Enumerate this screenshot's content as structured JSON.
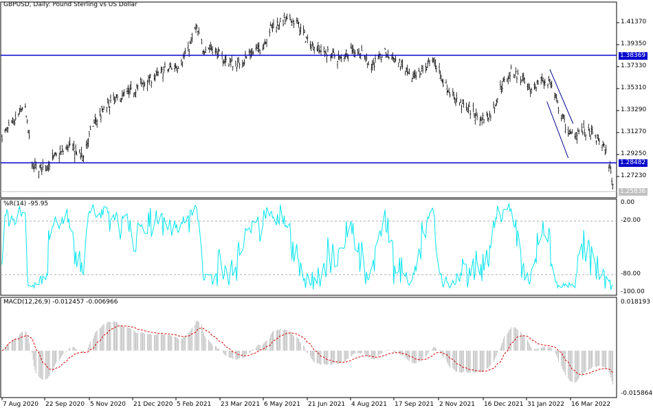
{
  "chart": {
    "title": "GBPUSD, Daily:  Pound Sterling vs US Dollar",
    "wpr_label": "%R(14) -95.95",
    "macd_label": "MACD(12,26,9) -0.012457 -0.006966"
  },
  "colors": {
    "bars": "#000000",
    "hline": "#0000cc",
    "wpr": "#00e5ee",
    "macd_hist": "#c0c0c0",
    "macd_signal": "#dd0000",
    "current_price": "#c0c0c0"
  },
  "chart_data": {
    "type": "ohlc",
    "price_axis": {
      "ticks": [
        "1.41370",
        "1.39350",
        "1.37330",
        "1.35310",
        "1.33290",
        "1.31270",
        "1.29250",
        "1.27230"
      ],
      "range": [
        1.2565,
        1.432
      ]
    },
    "price_tags": [
      {
        "value": "1.38369",
        "kind": "hline"
      },
      {
        "value": "1.28482",
        "kind": "hline"
      },
      {
        "value": "1.25836",
        "kind": "current"
      }
    ],
    "trendlines": [
      [
        [
          "2022-02-23",
          1.3708
        ],
        [
          "2022-03-19",
          1.3209
        ]
      ],
      [
        [
          "2022-02-20",
          1.3411
        ],
        [
          "2022-03-14",
          1.2893
        ]
      ]
    ],
    "x_ticks": [
      "7 Aug 2020",
      "22 Sep 2020",
      "5 Nov 2020",
      "21 Dec 2020",
      "5 Feb 2021",
      "23 Mar 2021",
      "6 May 2021",
      "21 Jun 2021",
      "4 Aug 2021",
      "17 Sep 2021",
      "2 Nov 2021",
      "16 Dec 2021",
      "31 Jan 2022",
      "16 Mar 2022"
    ],
    "closes": [
      [
        "2020-08-07",
        1.31
      ],
      [
        "2020-08-19",
        1.32
      ],
      [
        "2020-08-30",
        1.34
      ],
      [
        "2020-09-08",
        1.28
      ],
      [
        "2020-09-20",
        1.28
      ],
      [
        "2020-10-01",
        1.29
      ],
      [
        "2020-10-15",
        1.3
      ],
      [
        "2020-10-29",
        1.29
      ],
      [
        "2020-11-09",
        1.32
      ],
      [
        "2020-11-26",
        1.34
      ],
      [
        "2020-12-18",
        1.35
      ],
      [
        "2021-01-04",
        1.36
      ],
      [
        "2021-01-22",
        1.37
      ],
      [
        "2021-02-05",
        1.375
      ],
      [
        "2021-02-16",
        1.39
      ],
      [
        "2021-02-23",
        1.41
      ],
      [
        "2021-03-02",
        1.39
      ],
      [
        "2021-03-13",
        1.39
      ],
      [
        "2021-03-23",
        1.38
      ],
      [
        "2021-04-06",
        1.375
      ],
      [
        "2021-04-21",
        1.385
      ],
      [
        "2021-05-01",
        1.39
      ],
      [
        "2021-05-12",
        1.41
      ],
      [
        "2021-05-23",
        1.415
      ],
      [
        "2021-06-06",
        1.415
      ],
      [
        "2021-06-16",
        1.4
      ],
      [
        "2021-06-27",
        1.39
      ],
      [
        "2021-07-11",
        1.385
      ],
      [
        "2021-07-22",
        1.38
      ],
      [
        "2021-08-01",
        1.39
      ],
      [
        "2021-08-12",
        1.385
      ],
      [
        "2021-08-23",
        1.375
      ],
      [
        "2021-09-06",
        1.385
      ],
      [
        "2021-09-17",
        1.38
      ],
      [
        "2021-09-27",
        1.37
      ],
      [
        "2021-10-04",
        1.36
      ],
      [
        "2021-10-15",
        1.37
      ],
      [
        "2021-10-26",
        1.38
      ],
      [
        "2021-11-05",
        1.36
      ],
      [
        "2021-11-16",
        1.345
      ],
      [
        "2021-11-30",
        1.335
      ],
      [
        "2021-12-14",
        1.325
      ],
      [
        "2021-12-25",
        1.33
      ],
      [
        "2022-01-04",
        1.355
      ],
      [
        "2022-01-15",
        1.37
      ],
      [
        "2022-01-26",
        1.36
      ],
      [
        "2022-02-02",
        1.35
      ],
      [
        "2022-02-12",
        1.36
      ],
      [
        "2022-02-23",
        1.36
      ],
      [
        "2022-03-06",
        1.33
      ],
      [
        "2022-03-16",
        1.31
      ],
      [
        "2022-03-27",
        1.315
      ],
      [
        "2022-04-07",
        1.31
      ],
      [
        "2022-04-17",
        1.305
      ],
      [
        "2022-04-24",
        1.29
      ],
      [
        "2022-04-30",
        1.26
      ]
    ],
    "wpr_axis": {
      "ticks": [
        "0.00",
        "-20.00",
        "-80.00",
        "-100.00"
      ],
      "levels": [
        -20,
        -80
      ]
    },
    "macd_axis": {
      "ticks": [
        "0.018193",
        "-0.015864"
      ],
      "range": [
        -0.015864,
        0.018193
      ]
    }
  }
}
